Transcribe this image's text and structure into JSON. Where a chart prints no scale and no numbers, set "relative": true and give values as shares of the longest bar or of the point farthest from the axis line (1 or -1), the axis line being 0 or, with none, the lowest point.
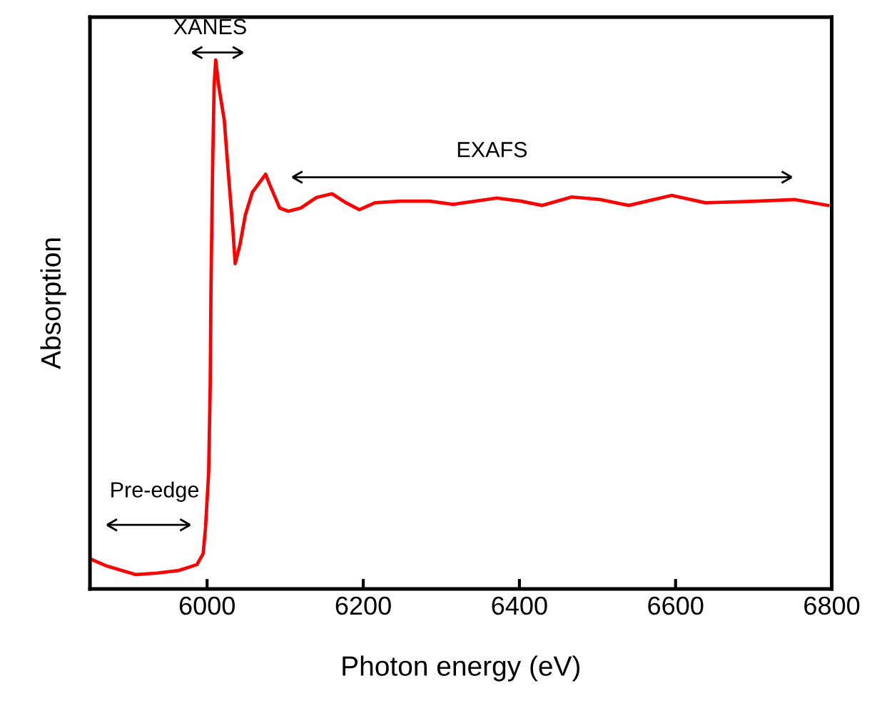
{
  "chart_data": {
    "type": "line",
    "relative": true,
    "xlabel": "Photon energy (eV)",
    "ylabel": "Absorption",
    "xlim": [
      5850,
      6800
    ],
    "xticks": [
      6000,
      6200,
      6400,
      6600,
      6800
    ],
    "grid": false,
    "legend": false,
    "annotations": [
      "XANES",
      "Pre-edge",
      "EXAFS"
    ],
    "series": [
      {
        "color": "#ff0000",
        "x": [
          5850,
          5872,
          5909,
          5936,
          5964,
          5987,
          5995,
          5998,
          6002,
          6004,
          6005,
          6007,
          6009,
          6011,
          6015,
          6022,
          6027,
          6033,
          6036,
          6042,
          6049,
          6058,
          6075,
          6080,
          6093,
          6104,
          6120,
          6140,
          6160,
          6178,
          6195,
          6215,
          6247,
          6285,
          6315,
          6371,
          6402,
          6429,
          6467,
          6504,
          6540,
          6595,
          6638,
          6704,
          6753,
          6795
        ],
        "values": [
          0.057,
          0.043,
          0.027,
          0.03,
          0.035,
          0.046,
          0.067,
          0.116,
          0.22,
          0.385,
          0.57,
          0.79,
          0.95,
          1.0,
          0.95,
          0.886,
          0.79,
          0.68,
          0.615,
          0.65,
          0.707,
          0.75,
          0.784,
          0.765,
          0.72,
          0.714,
          0.72,
          0.74,
          0.747,
          0.73,
          0.717,
          0.73,
          0.733,
          0.733,
          0.727,
          0.739,
          0.733,
          0.725,
          0.741,
          0.736,
          0.725,
          0.744,
          0.73,
          0.733,
          0.736,
          0.725
        ]
      }
    ]
  }
}
